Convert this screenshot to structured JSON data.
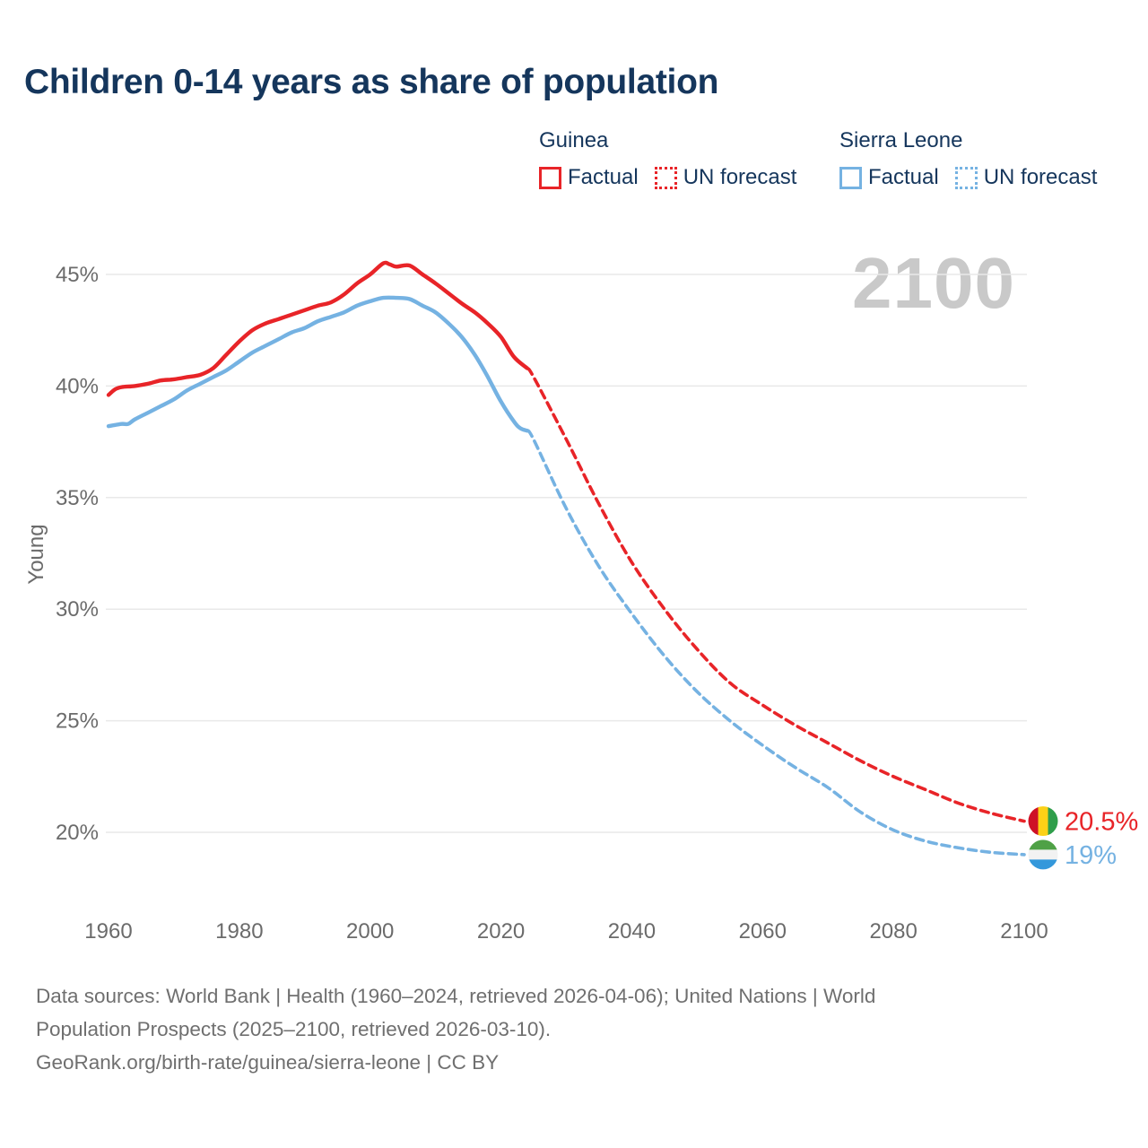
{
  "title": "Children 0-14 years as share of population",
  "watermark": "2100",
  "colors": {
    "guinea": "#e82428",
    "sierra_leone": "#75b2e2",
    "title_text": "#15365c",
    "axis_text": "#6b6b6b",
    "grid": "#e9e9e9",
    "footer_text": "#6f6f6f",
    "watermark": "#c9c9c9"
  },
  "legend": {
    "groups": [
      {
        "name": "Guinea",
        "color": "#e82428",
        "items": [
          {
            "label": "Factual",
            "style": "solid"
          },
          {
            "label": "UN forecast",
            "style": "dotted"
          }
        ]
      },
      {
        "name": "Sierra Leone",
        "color": "#75b2e2",
        "items": [
          {
            "label": "Factual",
            "style": "solid"
          },
          {
            "label": "UN forecast",
            "style": "dotted"
          }
        ]
      }
    ]
  },
  "chart_data": {
    "type": "line",
    "title": "Children 0-14 years as share of population",
    "xlabel": "",
    "ylabel": "Young",
    "grid": "horizontal",
    "legend_position": "top-right",
    "y_axis": {
      "unit": "%",
      "range": [
        18.5,
        46.5
      ],
      "ticks": [
        {
          "value": 45,
          "label": "45%"
        },
        {
          "value": 40,
          "label": "40%"
        },
        {
          "value": 35,
          "label": "35%"
        },
        {
          "value": 30,
          "label": "30%"
        },
        {
          "value": 25,
          "label": "25%"
        },
        {
          "value": 20,
          "label": "20%"
        }
      ]
    },
    "x_axis": {
      "range": [
        1960,
        2100
      ],
      "ticks": [
        {
          "value": 1960,
          "label": "1960"
        },
        {
          "value": 1980,
          "label": "1980"
        },
        {
          "value": 2000,
          "label": "2000"
        },
        {
          "value": 2020,
          "label": "2020"
        },
        {
          "value": 2040,
          "label": "2040"
        },
        {
          "value": 2060,
          "label": "2060"
        },
        {
          "value": 2080,
          "label": "2080"
        },
        {
          "value": 2100,
          "label": "2100"
        }
      ]
    },
    "series": [
      {
        "id": "guinea-factual",
        "name": "Guinea — Factual",
        "color": "#e82428",
        "line_style": "solid",
        "points": [
          [
            1960,
            39.6
          ],
          [
            1961,
            39.85
          ],
          [
            1962,
            39.95
          ],
          [
            1964,
            40.0
          ],
          [
            1966,
            40.1
          ],
          [
            1968,
            40.25
          ],
          [
            1970,
            40.3
          ],
          [
            1972,
            40.4
          ],
          [
            1974,
            40.5
          ],
          [
            1976,
            40.8
          ],
          [
            1978,
            41.4
          ],
          [
            1980,
            42.0
          ],
          [
            1982,
            42.5
          ],
          [
            1984,
            42.8
          ],
          [
            1986,
            43.0
          ],
          [
            1988,
            43.2
          ],
          [
            1990,
            43.4
          ],
          [
            1992,
            43.6
          ],
          [
            1994,
            43.75
          ],
          [
            1996,
            44.1
          ],
          [
            1998,
            44.6
          ],
          [
            2000,
            45.0
          ],
          [
            2002,
            45.5
          ],
          [
            2003,
            45.45
          ],
          [
            2004,
            45.35
          ],
          [
            2006,
            45.4
          ],
          [
            2008,
            45.0
          ],
          [
            2010,
            44.6
          ],
          [
            2012,
            44.15
          ],
          [
            2014,
            43.7
          ],
          [
            2016,
            43.3
          ],
          [
            2018,
            42.8
          ],
          [
            2020,
            42.2
          ],
          [
            2022,
            41.3
          ],
          [
            2024,
            40.8
          ]
        ]
      },
      {
        "id": "guinea-forecast",
        "name": "Guinea — UN forecast",
        "color": "#e82428",
        "line_style": "dashed",
        "points": [
          [
            2024,
            40.8
          ],
          [
            2025,
            40.4
          ],
          [
            2030,
            37.6
          ],
          [
            2035,
            34.7
          ],
          [
            2040,
            32.1
          ],
          [
            2045,
            30.0
          ],
          [
            2050,
            28.2
          ],
          [
            2055,
            26.7
          ],
          [
            2060,
            25.7
          ],
          [
            2065,
            24.8
          ],
          [
            2070,
            24.0
          ],
          [
            2075,
            23.2
          ],
          [
            2080,
            22.5
          ],
          [
            2085,
            21.9
          ],
          [
            2090,
            21.3
          ],
          [
            2095,
            20.85
          ],
          [
            2100,
            20.5
          ]
        ]
      },
      {
        "id": "sierra-leone-factual",
        "name": "Sierra Leone — Factual",
        "color": "#75b2e2",
        "line_style": "solid",
        "points": [
          [
            1960,
            38.2
          ],
          [
            1962,
            38.3
          ],
          [
            1963,
            38.3
          ],
          [
            1964,
            38.5
          ],
          [
            1966,
            38.8
          ],
          [
            1968,
            39.1
          ],
          [
            1970,
            39.4
          ],
          [
            1972,
            39.8
          ],
          [
            1974,
            40.1
          ],
          [
            1976,
            40.4
          ],
          [
            1978,
            40.7
          ],
          [
            1980,
            41.1
          ],
          [
            1982,
            41.5
          ],
          [
            1984,
            41.8
          ],
          [
            1986,
            42.1
          ],
          [
            1988,
            42.4
          ],
          [
            1990,
            42.6
          ],
          [
            1992,
            42.9
          ],
          [
            1994,
            43.1
          ],
          [
            1996,
            43.3
          ],
          [
            1998,
            43.6
          ],
          [
            2000,
            43.8
          ],
          [
            2002,
            43.95
          ],
          [
            2004,
            43.95
          ],
          [
            2006,
            43.9
          ],
          [
            2008,
            43.6
          ],
          [
            2010,
            43.3
          ],
          [
            2012,
            42.8
          ],
          [
            2014,
            42.2
          ],
          [
            2016,
            41.4
          ],
          [
            2018,
            40.4
          ],
          [
            2020,
            39.3
          ],
          [
            2022,
            38.4
          ],
          [
            2023,
            38.1
          ],
          [
            2024,
            38.0
          ]
        ]
      },
      {
        "id": "sierra-leone-forecast",
        "name": "Sierra Leone — UN forecast",
        "color": "#75b2e2",
        "line_style": "dashed",
        "points": [
          [
            2024,
            38.0
          ],
          [
            2025,
            37.6
          ],
          [
            2030,
            34.5
          ],
          [
            2035,
            31.9
          ],
          [
            2040,
            29.8
          ],
          [
            2045,
            27.9
          ],
          [
            2050,
            26.3
          ],
          [
            2055,
            25.0
          ],
          [
            2060,
            23.9
          ],
          [
            2065,
            22.9
          ],
          [
            2070,
            22.0
          ],
          [
            2075,
            20.9
          ],
          [
            2080,
            20.1
          ],
          [
            2085,
            19.6
          ],
          [
            2090,
            19.3
          ],
          [
            2095,
            19.1
          ],
          [
            2100,
            19.0
          ]
        ]
      }
    ],
    "end_markers": [
      {
        "id": "guinea",
        "label": "20.5%",
        "value": 20.5,
        "color": "#e82428",
        "flag_icon": "guinea-flag-icon",
        "flag_orientation": "vertical",
        "flag_colors": [
          "#ce1126",
          "#fcd116",
          "#2f9e4b"
        ]
      },
      {
        "id": "sierra-leone",
        "label": "19%",
        "value": 19,
        "color": "#75b2e2",
        "flag_icon": "sierra-leone-flag-icon",
        "flag_orientation": "horizontal",
        "flag_colors": [
          "#4fa146",
          "#f2f2f2",
          "#3498db"
        ]
      }
    ]
  },
  "footer": {
    "lines": [
      "Data sources: World Bank | Health (1960–2024, retrieved 2026-04-06); United Nations | World",
      "Population Prospects (2025–2100, retrieved 2026-03-10).",
      "GeoRank.org/birth-rate/guinea/sierra-leone | CC BY"
    ]
  }
}
